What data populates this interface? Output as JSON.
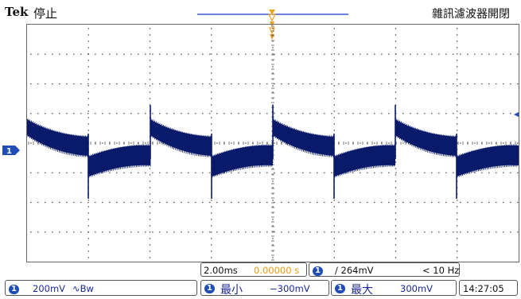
{
  "header": {
    "brand": "Tek",
    "run_state": "停止",
    "title": "雜訊濾波器開閉"
  },
  "timebase": {
    "time_per_div": "2.00ms",
    "trigger_position": "0.00000 s"
  },
  "trigger": {
    "channel": "1",
    "slope_level": "/ 264mV",
    "frequency": "< 10 Hz"
  },
  "channel1": {
    "marker": "1",
    "scale": "200mV",
    "coupling": "∿Bw"
  },
  "measurements": {
    "min_label": "最小",
    "min_value": "−300mV",
    "max_label": "最大",
    "max_value": "300mV"
  },
  "clock": "14:27:05",
  "colors": {
    "waveform": "#0b1a6b",
    "marker": "#1f4db8",
    "trigger_marker": "#f0a020",
    "grid_dots": "#555555"
  }
}
